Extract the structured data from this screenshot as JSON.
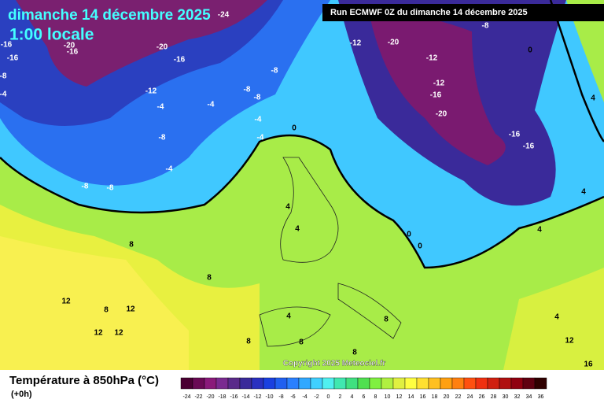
{
  "map": {
    "title": "dimanche 14 décembre 2025",
    "local_time": "1:00 locale",
    "run_info": "Run ECMWF 0Z du dimanche 14 décembre 2025",
    "copyright": "Copyright 2025 Meteociel.fr",
    "contour_labels": [
      -24,
      -16,
      -16,
      -8,
      -4,
      -20,
      -16,
      -20,
      -16,
      -12,
      -8,
      -8,
      -8,
      -4,
      -4,
      -4,
      -4,
      0,
      -8,
      -4,
      -8,
      -8,
      -12,
      -20,
      -12,
      -12,
      -16,
      -20,
      -16,
      -16,
      -8,
      0,
      4,
      0,
      0,
      4,
      4,
      8,
      8,
      12,
      8,
      12,
      12,
      12,
      4,
      8,
      8,
      8,
      8,
      4,
      12,
      16,
      4,
      4
    ]
  },
  "legend": {
    "title": "Température à 850hPa (°C)",
    "subtitle": "(+0h)",
    "ticks": [
      -24,
      -22,
      -20,
      -18,
      -16,
      -14,
      -12,
      -10,
      -8,
      -6,
      -4,
      -2,
      0,
      2,
      4,
      6,
      8,
      10,
      12,
      14,
      16,
      18,
      20,
      22,
      24,
      26,
      28,
      30,
      32,
      34,
      36
    ],
    "colors": [
      "#4a0033",
      "#6a0a55",
      "#8a1a7a",
      "#7a2a90",
      "#5a2a8a",
      "#3a2a9a",
      "#2a30c0",
      "#1a40e0",
      "#2060f0",
      "#2a80ff",
      "#30a8ff",
      "#40d0ff",
      "#50f0f0",
      "#40e8b0",
      "#40e080",
      "#50e050",
      "#80f040",
      "#b0f040",
      "#e0f040",
      "#ffff40",
      "#ffe030",
      "#ffc020",
      "#ffa010",
      "#ff8010",
      "#ff5010",
      "#f03010",
      "#d02010",
      "#b01010",
      "#900010",
      "#600010",
      "#300000"
    ]
  }
}
